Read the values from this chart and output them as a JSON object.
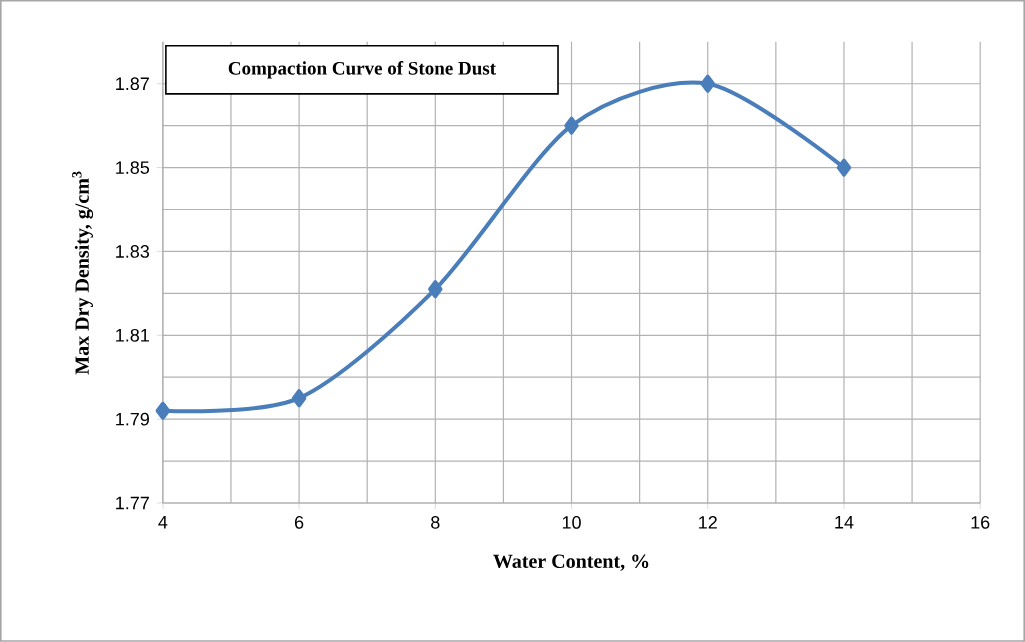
{
  "chart_data": {
    "type": "line",
    "title": "Compaction Curve of Stone Dust",
    "xlabel": "Water Content, %",
    "ylabel": "Max Dry Density, g/cm$^{3}$",
    "x": [
      4,
      6,
      8,
      10,
      12,
      14
    ],
    "series": [
      {
        "color": "#4a7ebb",
        "values": [
          1.792,
          1.795,
          1.821,
          1.86,
          1.87,
          1.85
        ]
      }
    ],
    "xlim": [
      4,
      16
    ],
    "ylim": [
      1.77,
      1.88
    ],
    "xticks": [
      4,
      6,
      8,
      10,
      12,
      14,
      16
    ],
    "yticks": [
      1.77,
      1.79,
      1.81,
      1.83,
      1.85,
      1.87
    ],
    "grid": true,
    "marker": "diamond",
    "line_style": "solid"
  }
}
